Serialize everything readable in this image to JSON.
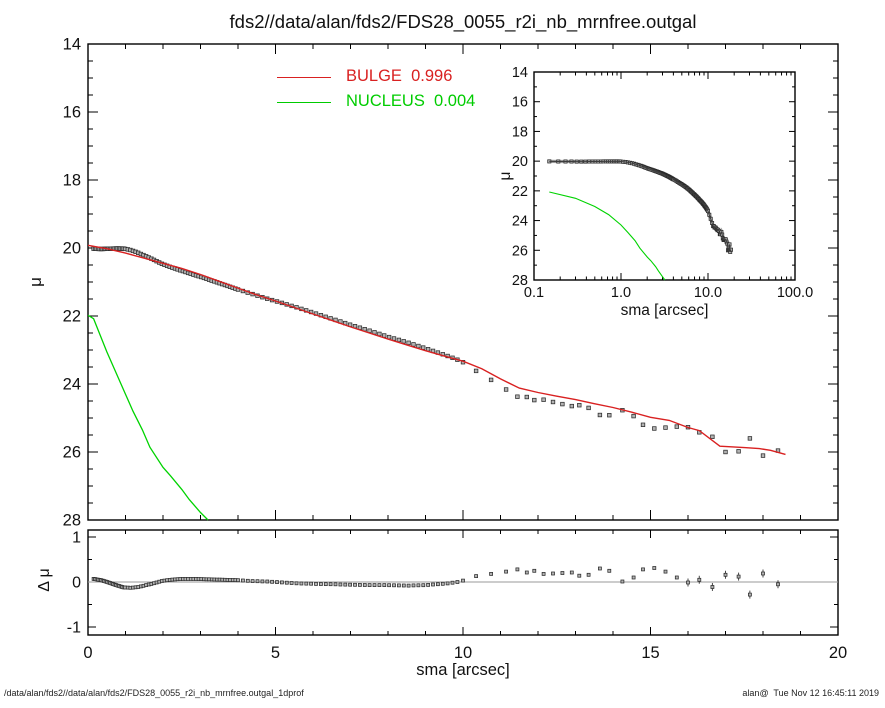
{
  "title": "fds2//data/alan/fds2/FDS28_0055_r2i_nb_mrnfree.outgal",
  "legend": {
    "bulge_label": "BULGE  0.996",
    "nucleus_label": "NUCLEUS  0.004",
    "bulge_color": "#d92121",
    "nucleus_color": "#00cc00"
  },
  "footer": {
    "left": "/data/alan/fds2//data/alan/fds2/FDS28_0055_r2i_nb_mrnfree.outgal_1dprof",
    "right": "alan@  Tue Nov 12 16:45:11 2019"
  },
  "colors": {
    "bulge_line": "#d92121",
    "nucleus_line": "#00d300",
    "data_square_fill": "#b3b3b3",
    "data_square_edge": "#2b2b2b",
    "zero_line": "#999999",
    "frame": "#000000"
  },
  "chart_data": {
    "type": "line+scatter",
    "main": {
      "xlabel": "sma [arcsec]",
      "ylabel": "μ",
      "xlim": [
        0,
        20
      ],
      "ylim_top_to_bottom": [
        14,
        28
      ],
      "xtick_labels": [
        "0",
        "5",
        "10",
        "15",
        "20"
      ],
      "ytick_labels": [
        "14",
        "16",
        "18",
        "20",
        "22",
        "24",
        "26",
        "28"
      ],
      "bulge_model_anchors": [
        [
          0,
          19.92
        ],
        [
          0.15,
          19.95
        ],
        [
          0.5,
          20.02
        ],
        [
          1.0,
          20.15
        ],
        [
          1.5,
          20.3
        ],
        [
          2.0,
          20.45
        ],
        [
          2.5,
          20.6
        ],
        [
          3.0,
          20.78
        ],
        [
          3.5,
          20.98
        ],
        [
          4.0,
          21.18
        ],
        [
          4.5,
          21.38
        ],
        [
          5.0,
          21.56
        ],
        [
          5.5,
          21.75
        ],
        [
          6.0,
          21.94
        ],
        [
          6.5,
          22.13
        ],
        [
          7.0,
          22.32
        ],
        [
          7.5,
          22.5
        ],
        [
          8.0,
          22.68
        ],
        [
          8.5,
          22.85
        ],
        [
          9.0,
          23.02
        ],
        [
          9.5,
          23.18
        ],
        [
          10.0,
          23.33
        ],
        [
          10.5,
          23.55
        ],
        [
          11.0,
          23.85
        ],
        [
          11.5,
          24.12
        ],
        [
          12.0,
          24.25
        ],
        [
          12.5,
          24.36
        ],
        [
          13.0,
          24.46
        ],
        [
          13.5,
          24.58
        ],
        [
          14.0,
          24.69
        ],
        [
          14.5,
          24.83
        ],
        [
          15.0,
          24.98
        ],
        [
          15.5,
          25.07
        ],
        [
          16.0,
          25.28
        ],
        [
          16.3,
          25.37
        ],
        [
          16.85,
          25.83
        ],
        [
          17.5,
          25.87
        ],
        [
          17.9,
          25.9
        ],
        [
          18.2,
          25.95
        ],
        [
          18.6,
          26.07
        ]
      ],
      "nucleus_anchors": [
        [
          0,
          21.98
        ],
        [
          0.15,
          22.08
        ],
        [
          0.3,
          22.5
        ],
        [
          0.5,
          23.05
        ],
        [
          0.72,
          23.6
        ],
        [
          1.0,
          24.3
        ],
        [
          1.2,
          24.8
        ],
        [
          1.45,
          25.35
        ],
        [
          1.65,
          25.86
        ],
        [
          2.0,
          26.45
        ],
        [
          2.2,
          26.7
        ],
        [
          2.5,
          27.1
        ],
        [
          2.7,
          27.4
        ],
        [
          3.0,
          27.78
        ],
        [
          3.2,
          28.0
        ]
      ],
      "data_sma": [
        0.15,
        0.19,
        0.23,
        0.27,
        0.31,
        0.35,
        0.39,
        0.43,
        0.47,
        0.51,
        0.55,
        0.59,
        0.63,
        0.67,
        0.71,
        0.75,
        0.79,
        0.83,
        0.87,
        0.91,
        0.95,
        0.99,
        1.06,
        1.13,
        1.2,
        1.27,
        1.34,
        1.41,
        1.48,
        1.55,
        1.62,
        1.69,
        1.76,
        1.83,
        1.9,
        1.97,
        2.04,
        2.11,
        2.18,
        2.25,
        2.32,
        2.39,
        2.46,
        2.53,
        2.6,
        2.67,
        2.74,
        2.81,
        2.88,
        2.95,
        3.02,
        3.09,
        3.16,
        3.23,
        3.3,
        3.37,
        3.44,
        3.51,
        3.58,
        3.65,
        3.72,
        3.79,
        3.86,
        3.93,
        4.0,
        4.13,
        4.26,
        4.39,
        4.52,
        4.65,
        4.78,
        4.91,
        5.04,
        5.17,
        5.3,
        5.43,
        5.56,
        5.69,
        5.82,
        5.95,
        6.08,
        6.21,
        6.34,
        6.47,
        6.6,
        6.73,
        6.86,
        6.99,
        7.12,
        7.25,
        7.38,
        7.51,
        7.64,
        7.77,
        7.9,
        8.03,
        8.16,
        8.29,
        8.42,
        8.55,
        8.68,
        8.81,
        8.94,
        9.07,
        9.2,
        9.33,
        9.46,
        9.59,
        9.72,
        9.85,
        10.0,
        10.35,
        10.75,
        11.15,
        11.45,
        11.7,
        11.9,
        12.15,
        12.4,
        12.65,
        12.9,
        13.1,
        13.35,
        13.65,
        13.9,
        14.25,
        14.55,
        14.8,
        15.1,
        15.4,
        15.7,
        16.0,
        16.3,
        16.65,
        17.0,
        17.35,
        17.65,
        18.0,
        18.4
      ],
      "residual_anchors": [
        [
          0.15,
          0.07
        ],
        [
          0.35,
          0.04
        ],
        [
          0.55,
          -0.01
        ],
        [
          0.75,
          -0.07
        ],
        [
          0.95,
          -0.12
        ],
        [
          1.15,
          -0.13
        ],
        [
          1.35,
          -0.11
        ],
        [
          1.55,
          -0.07
        ],
        [
          1.75,
          -0.03
        ],
        [
          1.95,
          0.02
        ],
        [
          2.2,
          0.05
        ],
        [
          2.5,
          0.07
        ],
        [
          2.8,
          0.07
        ],
        [
          3.2,
          0.06
        ],
        [
          3.6,
          0.05
        ],
        [
          4.0,
          0.04
        ],
        [
          4.4,
          0.02
        ],
        [
          4.8,
          0.01
        ],
        [
          5.2,
          -0.01
        ],
        [
          5.6,
          -0.03
        ],
        [
          6.0,
          -0.04
        ],
        [
          6.5,
          -0.05
        ],
        [
          7.0,
          -0.06
        ],
        [
          7.5,
          -0.07
        ],
        [
          8.0,
          -0.07
        ],
        [
          8.5,
          -0.08
        ],
        [
          9.0,
          -0.07
        ],
        [
          9.3,
          -0.05
        ],
        [
          9.6,
          -0.03
        ],
        [
          9.85,
          0.0
        ],
        [
          10.0,
          0.03
        ],
        [
          10.35,
          0.13
        ],
        [
          10.75,
          0.18
        ],
        [
          11.15,
          0.23
        ],
        [
          11.45,
          0.28
        ],
        [
          11.7,
          0.21
        ],
        [
          11.9,
          0.25
        ],
        [
          12.15,
          0.18
        ],
        [
          12.4,
          0.19
        ],
        [
          12.65,
          0.2
        ],
        [
          12.9,
          0.21
        ],
        [
          13.1,
          0.14
        ],
        [
          13.35,
          0.16
        ],
        [
          13.65,
          0.3
        ],
        [
          13.9,
          0.25
        ],
        [
          14.25,
          0.01
        ],
        [
          14.55,
          0.1
        ],
        [
          14.8,
          0.28
        ],
        [
          15.1,
          0.31
        ],
        [
          15.4,
          0.23
        ],
        [
          15.7,
          0.1
        ],
        [
          16.0,
          -0.01
        ],
        [
          16.3,
          0.05
        ],
        [
          16.65,
          -0.11
        ],
        [
          17.0,
          0.16
        ],
        [
          17.35,
          0.12
        ],
        [
          17.65,
          -0.28
        ],
        [
          18.0,
          0.19
        ],
        [
          18.4,
          -0.05
        ]
      ],
      "note": "data point μ(sma) = bulge_model(sma) + residual(sma)"
    },
    "inset": {
      "xlabel": "sma [arcsec]",
      "ylabel": "μ",
      "xscale": "log",
      "xlim": [
        0.1,
        100.0
      ],
      "ylim_top_to_bottom": [
        14,
        28
      ],
      "xtick_labels": [
        "0.1",
        "1.0",
        "10.0",
        "100.0"
      ],
      "ytick_labels": [
        "14",
        "16",
        "18",
        "20",
        "22",
        "24",
        "26",
        "28"
      ]
    },
    "residual_panel": {
      "ylabel": "Δ μ",
      "ylim": [
        -1,
        1
      ],
      "ytick_labels": [
        "1",
        "0",
        "-1"
      ],
      "errorbars_from_sma": 15.9
    }
  }
}
